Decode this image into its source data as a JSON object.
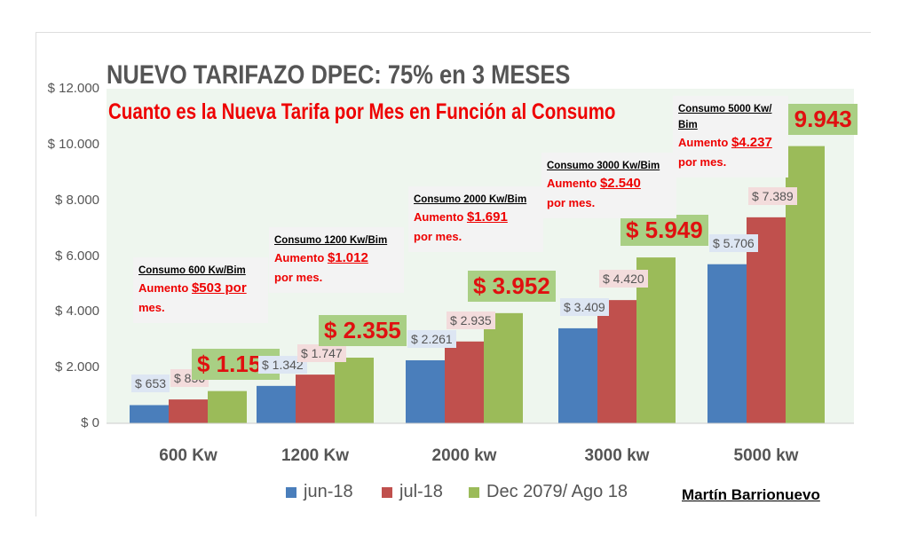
{
  "chart_data": {
    "type": "bar",
    "title": "NUEVO TARIFAZO DPEC: 75% en 3 MESES",
    "subtitle": "Cuanto es la Nueva Tarifa por Mes en Función al Consumo",
    "categories": [
      "600 Kw",
      "1200 Kw",
      "2000 kw",
      "3000 kw",
      "5000 kw"
    ],
    "series": [
      {
        "name": "jun-18",
        "color": "#4a7ebb",
        "values": [
          653,
          1342,
          2261,
          3409,
          5706
        ],
        "labels": [
          "$ 653",
          "$ 1.342",
          "$ 2.261",
          "$ 3.409",
          "$ 5.706"
        ]
      },
      {
        "name": "jul-18",
        "color": "#c0504d",
        "values": [
          856,
          1747,
          2935,
          4420,
          7389
        ],
        "labels": [
          "$ 856",
          "$ 1.747",
          "$ 2.935",
          "$ 4.420",
          "$ 7.389"
        ]
      },
      {
        "name": "Dec 2079/ Ago 18",
        "color": "#9bbb59",
        "values": [
          1157,
          2355,
          3952,
          5949,
          9943
        ],
        "labels": [
          "$ 1.157",
          "$ 2.355",
          "$ 3.952",
          "$ 5.949",
          "$ 9.943"
        ]
      }
    ],
    "ylim": [
      0,
      12000
    ],
    "yticks": [
      "$ 0",
      "$ 2.000",
      "$ 4.000",
      "$ 6.000",
      "$ 8.000",
      "$ 10.000",
      "$ 12.000"
    ],
    "annotations": [
      {
        "head": "Consumo 600 Kw/Bim",
        "pre": "Aumento ",
        "amount": "$503 por",
        "post": "mes."
      },
      {
        "head": "Consumo 1200 Kw/Bim",
        "pre": "Aumento ",
        "amount": "$1.012",
        "post": "por mes."
      },
      {
        "head": "Consumo 2000 Kw/Bim",
        "pre": "Aumento ",
        "amount": "$1.691",
        "post": "por mes."
      },
      {
        "head": "Consumo 3000 Kw/Bim",
        "pre": "Aumento ",
        "amount": "$2.540",
        "post": "por mes."
      },
      {
        "head": "Consumo 5000 Kw/ Bim",
        "pre": "Aumento ",
        "amount": "$4.237",
        "post": "por mes."
      }
    ],
    "legend": "bottom",
    "author": "Martín Barrionuevo"
  }
}
